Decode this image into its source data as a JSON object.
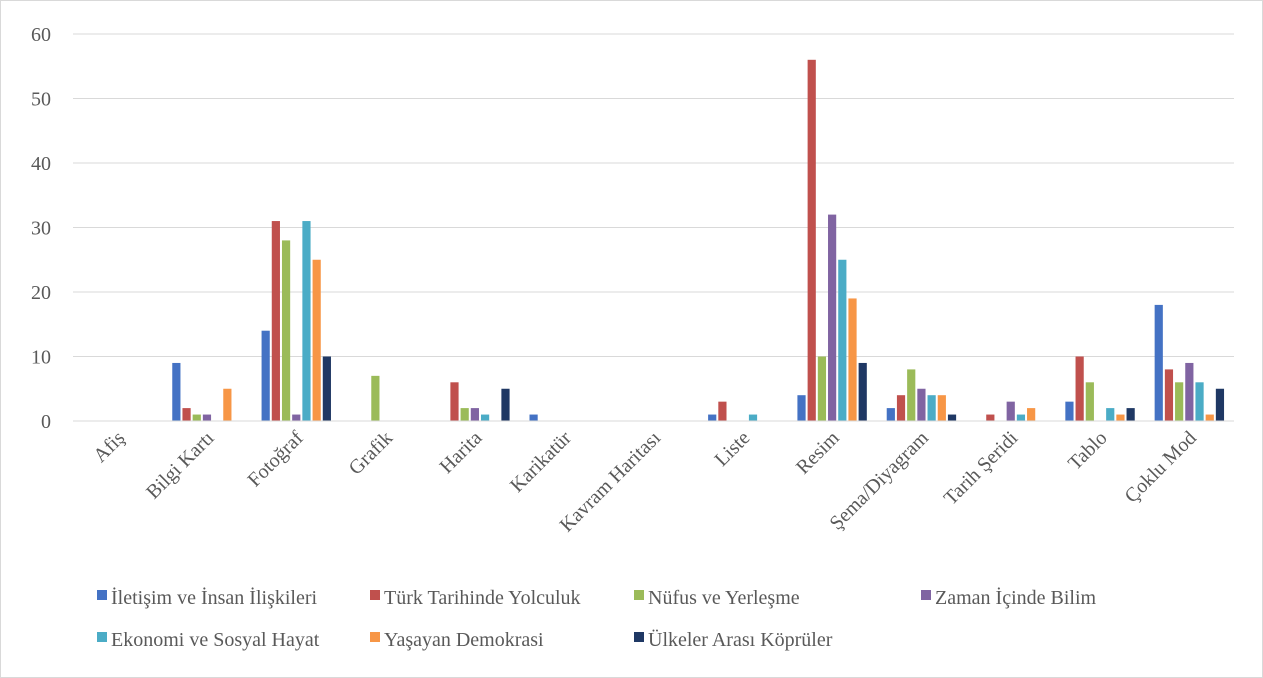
{
  "chart_data": {
    "type": "bar",
    "categories": [
      "Afiş",
      "Bilgi Kartı",
      "Fotoğraf",
      "Grafik",
      "Harita",
      "Karikatür",
      "Kavram Haritası",
      "Liste",
      "Resim",
      "Şema/Diyagram",
      "Tarih Şeridi",
      "Tablo",
      "Çoklu Mod"
    ],
    "series": [
      {
        "name": "İletişim ve İnsan İlişkileri",
        "color": "#4472C4",
        "values": [
          0,
          9,
          14,
          0,
          0,
          1,
          0,
          1,
          4,
          2,
          0,
          3,
          18
        ]
      },
      {
        "name": "Türk Tarihinde Yolculuk",
        "color": "#C0504D",
        "values": [
          0,
          2,
          31,
          0,
          6,
          0,
          0,
          3,
          56,
          4,
          1,
          10,
          8
        ]
      },
      {
        "name": "Nüfus ve Yerleşme",
        "color": "#9BBB59",
        "values": [
          0,
          1,
          28,
          7,
          2,
          0,
          0,
          0,
          10,
          8,
          0,
          6,
          6
        ]
      },
      {
        "name": "Zaman İçinde Bilim",
        "color": "#8064A2",
        "values": [
          0,
          1,
          1,
          0,
          2,
          0,
          0,
          0,
          32,
          5,
          3,
          0,
          9
        ]
      },
      {
        "name": "Ekonomi ve Sosyal Hayat",
        "color": "#4BACC6",
        "values": [
          0,
          0,
          31,
          0,
          1,
          0,
          0,
          1,
          25,
          4,
          1,
          2,
          6
        ]
      },
      {
        "name": "Yaşayan Demokrasi",
        "color": "#F79646",
        "values": [
          0,
          5,
          25,
          0,
          0,
          0,
          0,
          0,
          19,
          4,
          2,
          1,
          1
        ]
      },
      {
        "name": "Ülkeler Arası Köprüler",
        "color": "#1F3864",
        "values": [
          0,
          0,
          10,
          0,
          5,
          0,
          0,
          0,
          9,
          1,
          0,
          2,
          5
        ]
      }
    ],
    "yticks": [
      "0",
      "10",
      "20",
      "30",
      "40",
      "50",
      "60"
    ],
    "ylim": [
      0,
      60
    ],
    "grid": true,
    "legend_position": "bottom"
  }
}
